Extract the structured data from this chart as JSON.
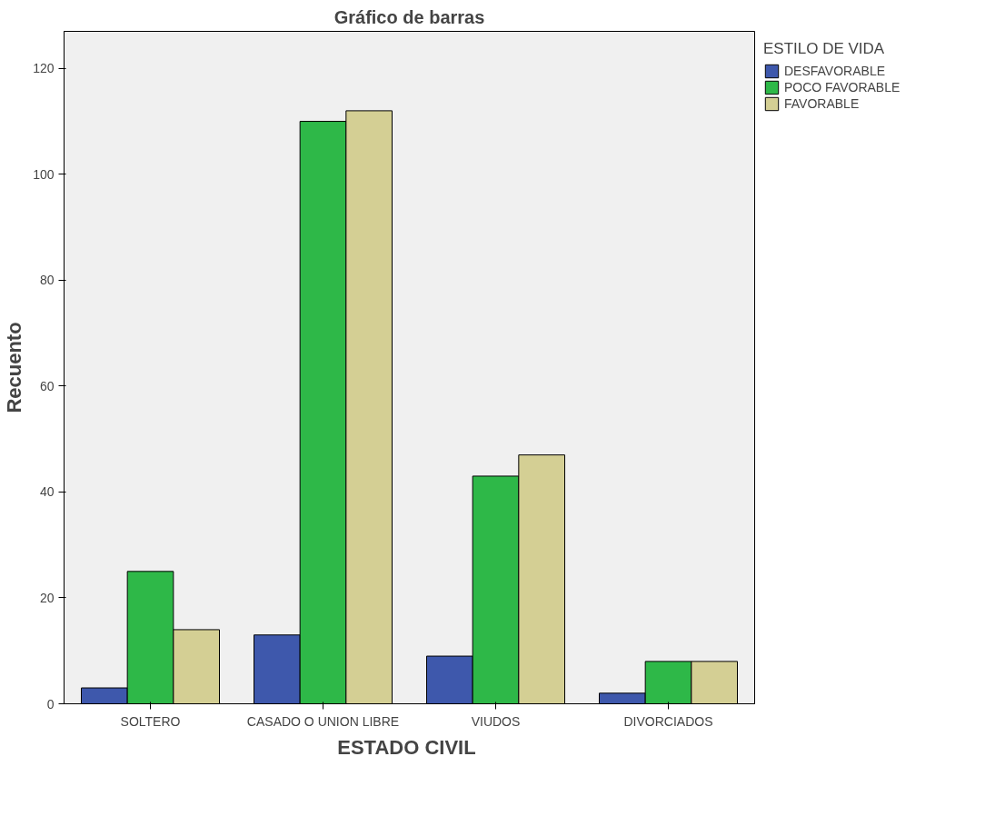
{
  "chart_data": {
    "type": "bar",
    "title": "Gráfico de barras",
    "xlabel": "ESTADO  CIVIL",
    "ylabel": "Recuento",
    "legend_title": "ESTILO DE VIDA",
    "categories": [
      "SOLTERO",
      "CASADO O UNION LIBRE",
      "VIUDOS",
      "DIVORCIADOS"
    ],
    "series": [
      {
        "name": "DESFAVORABLE",
        "color": "#3e58ac",
        "values": [
          3,
          13,
          9,
          2
        ]
      },
      {
        "name": "POCO FAVORABLE",
        "color": "#2eb848",
        "values": [
          25,
          110,
          43,
          8
        ]
      },
      {
        "name": "FAVORABLE",
        "color": "#d4cf94",
        "values": [
          14,
          112,
          47,
          8
        ]
      }
    ],
    "ylim": [
      0,
      127
    ],
    "yticks": [
      0,
      20,
      40,
      60,
      80,
      100,
      120
    ],
    "grid": false,
    "legend": "top right"
  }
}
